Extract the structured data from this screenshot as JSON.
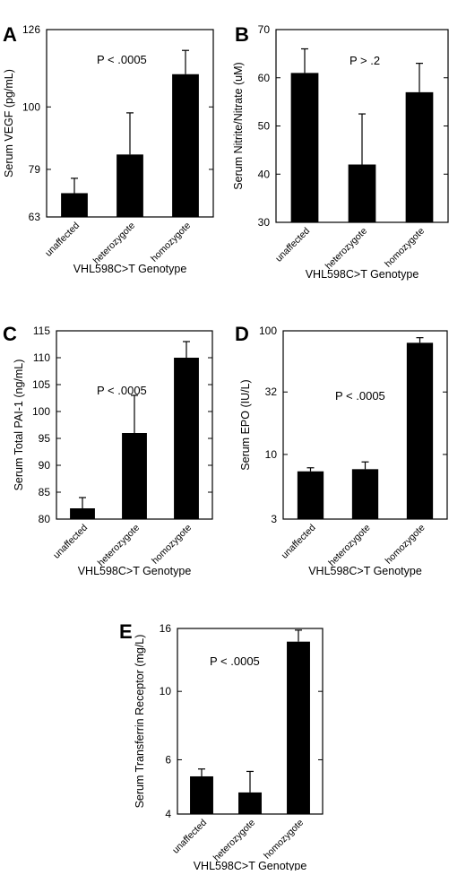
{
  "chart_data": [
    {
      "type": "bar",
      "panel": "A",
      "categories": [
        "unaffected",
        "heterozygote",
        "homozygote"
      ],
      "values": [
        71,
        84,
        111
      ],
      "errors": [
        5,
        14,
        8
      ],
      "ylabel": "Serum VEGF (pg/mL)",
      "xlabel": "VHL598C>T Genotype",
      "annotation": "P < .0005",
      "ylim": [
        63,
        126
      ],
      "yticks": [
        63,
        79,
        100,
        126
      ],
      "scale": "linear",
      "bar_color": "#000000"
    },
    {
      "type": "bar",
      "panel": "B",
      "categories": [
        "unaffected",
        "heterozygote",
        "homozygote"
      ],
      "values": [
        61,
        42,
        57
      ],
      "errors": [
        5,
        10.5,
        6
      ],
      "ylabel": "Serum Nitrite/Nitrate (uM)",
      "xlabel": "VHL598C>T Genotype",
      "annotation": "P > .2",
      "ylim": [
        30,
        70
      ],
      "yticks": [
        30,
        40,
        50,
        60,
        70
      ],
      "scale": "linear",
      "bar_color": "#000000"
    },
    {
      "type": "bar",
      "panel": "C",
      "categories": [
        "unaffected",
        "heterozygote",
        "homozygote"
      ],
      "values": [
        82,
        96,
        110
      ],
      "errors": [
        2,
        7,
        3
      ],
      "ylabel": "Serum Total PAI-1 (ng/mL)",
      "xlabel": "VHL598C>T Genotype",
      "annotation": "P < .0005",
      "ylim": [
        80,
        115
      ],
      "yticks": [
        80,
        85,
        90,
        95,
        100,
        105,
        110,
        115
      ],
      "scale": "linear",
      "bar_color": "#000000"
    },
    {
      "type": "bar",
      "panel": "D",
      "categories": [
        "unaffected",
        "heterozygote",
        "homozygote"
      ],
      "values": [
        7.3,
        7.6,
        80
      ],
      "errors": [
        0.5,
        1.1,
        8
      ],
      "ylabel": "Serum EPO (IU/L)",
      "xlabel": "VHL598C>T Genotype",
      "annotation": "P < .0005",
      "ylim": [
        3,
        100
      ],
      "yticks": [
        3,
        10,
        32,
        100
      ],
      "scale": "log",
      "bar_color": "#000000"
    },
    {
      "type": "bar",
      "panel": "E",
      "categories": [
        "unaffected",
        "heterozygote",
        "homozygote"
      ],
      "values": [
        5.3,
        4.7,
        14.5
      ],
      "errors": [
        0.3,
        0.8,
        1.3
      ],
      "ylabel": "Serum Transferrin Receptor (mg/L)",
      "xlabel": "VHL598C>T Genotype",
      "annotation": "P < .0005",
      "ylim": [
        4,
        16
      ],
      "yticks": [
        4,
        6,
        10,
        16
      ],
      "scale": "log",
      "bar_color": "#000000"
    }
  ]
}
